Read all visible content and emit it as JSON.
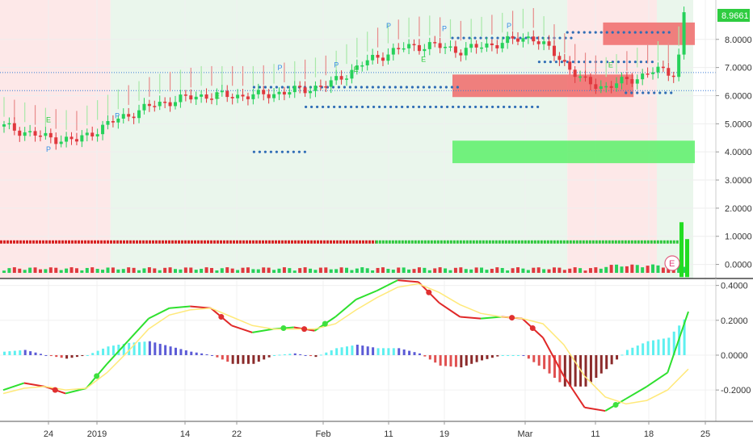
{
  "price_axis": {
    "ticks": [
      "8.0000",
      "7.0000",
      "6.0000",
      "5.0000",
      "4.0000",
      "3.0000",
      "2.0000",
      "1.0000",
      "0.0000"
    ],
    "tick_values": [
      8,
      7,
      6,
      5,
      4,
      3,
      2,
      1,
      0
    ],
    "last_price_label": "8.9661",
    "last_price": 8.9661
  },
  "osc_axis": {
    "ticks": [
      "0.4000",
      "0.2000",
      "0.0000",
      "-0.2000"
    ],
    "tick_values": [
      0.4,
      0.2,
      0,
      -0.2
    ]
  },
  "time_axis": {
    "labels": [
      "24",
      "2019",
      "14",
      "22",
      "Feb",
      "11",
      "19",
      "Mar",
      "11",
      "18",
      "25"
    ]
  },
  "markers": {
    "pivot": "P",
    "earnings": "E",
    "earnings_badge": "E"
  },
  "colors": {
    "up": "#26d15a",
    "down": "#e0383e",
    "bg_red": "#fde8e8",
    "bg_green": "#eaf6ec",
    "macd": "#2ee02e",
    "signal": "#ffe97a",
    "hist_pos_strong": "#5ef0f0",
    "hist_pos_weak": "#5b5bd6",
    "hist_neg_strong": "#e05050",
    "hist_neg_weak": "#8b2b2b",
    "dots": "#2f6db5",
    "box_green": "#5cf06a",
    "box_red": "#f06a6a"
  },
  "chart_data": [
    {
      "type": "candlestick",
      "title": "",
      "y_range": [
        -0.5,
        9.4
      ],
      "x_start": "2018-12-18",
      "x_ticks": [
        "2018-12-24",
        "2019-01-01",
        "2019-01-14",
        "2019-01-22",
        "2019-02-01",
        "2019-02-11",
        "2019-02-19",
        "2019-03-01",
        "2019-03-11",
        "2019-03-18",
        "2019-03-25"
      ],
      "closes": [
        {
          "date": "2018-12-18",
          "close": 4.9
        },
        {
          "date": "2018-12-24",
          "close": 4.5
        },
        {
          "date": "2018-12-28",
          "close": 4.4
        },
        {
          "date": "2019-01-03",
          "close": 5.2
        },
        {
          "date": "2019-01-08",
          "close": 5.7
        },
        {
          "date": "2019-01-14",
          "close": 6.0
        },
        {
          "date": "2019-01-22",
          "close": 6.0
        },
        {
          "date": "2019-01-28",
          "close": 6.2
        },
        {
          "date": "2019-02-01",
          "close": 6.4
        },
        {
          "date": "2019-02-06",
          "close": 7.2
        },
        {
          "date": "2019-02-11",
          "close": 7.7
        },
        {
          "date": "2019-02-15",
          "close": 7.8
        },
        {
          "date": "2019-02-19",
          "close": 7.6
        },
        {
          "date": "2019-02-25",
          "close": 7.9
        },
        {
          "date": "2019-03-01",
          "close": 8.1
        },
        {
          "date": "2019-03-05",
          "close": 7.3
        },
        {
          "date": "2019-03-08",
          "close": 6.5
        },
        {
          "date": "2019-03-11",
          "close": 6.3
        },
        {
          "date": "2019-03-15",
          "close": 6.6
        },
        {
          "date": "2019-03-18",
          "close": 6.9
        },
        {
          "date": "2019-03-21",
          "close": 6.8
        },
        {
          "date": "2019-03-22",
          "close": 8.9661
        }
      ],
      "background_zones": [
        {
          "from": "2018-12-18",
          "to": "2019-01-03",
          "trend": "bearish"
        },
        {
          "from": "2019-01-03",
          "to": "2019-03-07",
          "trend": "bullish"
        },
        {
          "from": "2019-03-07",
          "to": "2019-03-19",
          "trend": "bearish"
        },
        {
          "from": "2019-03-19",
          "to": "2019-03-22",
          "trend": "bullish"
        }
      ],
      "zones": [
        {
          "color": "red",
          "from": "2019-03-12",
          "to": "2019-03-22",
          "y_low": 7.8,
          "y_high": 8.6
        },
        {
          "color": "red",
          "from": "2019-02-20",
          "to": "2019-03-16",
          "y_low": 5.95,
          "y_high": 6.75
        },
        {
          "color": "green",
          "from": "2019-02-20",
          "to": "2019-03-22",
          "y_low": 3.6,
          "y_high": 4.4
        }
      ],
      "dotted_levels": [
        {
          "y": 4.0,
          "from": "2019-01-24",
          "to": "2019-01-30"
        },
        {
          "y": 5.6,
          "from": "2019-01-30",
          "to": "2019-03-03"
        },
        {
          "y": 6.3,
          "from": "2019-01-24",
          "to": "2019-02-21"
        },
        {
          "y": 7.2,
          "from": "2019-03-03",
          "to": "2019-03-19"
        },
        {
          "y": 8.05,
          "from": "2019-02-20",
          "to": "2019-03-08"
        },
        {
          "y": 8.25,
          "from": "2019-03-07",
          "to": "2019-03-21"
        },
        {
          "y": 6.1,
          "from": "2019-03-15",
          "to": "2019-03-21"
        }
      ],
      "horizontal_lines": [
        {
          "y": 6.82
        },
        {
          "y": 6.18
        }
      ],
      "band_line": [
        {
          "from": "2018-12-18",
          "to": "2019-02-09",
          "y": 0.8,
          "color": "red"
        },
        {
          "from": "2019-02-09",
          "to": "2019-03-22",
          "y": 0.8,
          "color": "green"
        }
      ],
      "volume_spikes": [
        1.95,
        1.35
      ]
    },
    {
      "type": "line",
      "title": "",
      "y_range": [
        -0.38,
        0.44
      ],
      "series": [
        {
          "kind": "macd",
          "values": [
            -0.2,
            -0.16,
            -0.18,
            -0.22,
            -0.19,
            -0.05,
            0.08,
            0.21,
            0.27,
            0.28,
            0.27,
            0.17,
            0.13,
            0.15,
            0.16,
            0.14,
            0.22,
            0.32,
            0.37,
            0.43,
            0.42,
            0.3,
            0.22,
            0.21,
            0.22,
            0.21,
            0.1,
            -0.12,
            -0.3,
            -0.32,
            -0.25,
            -0.18,
            -0.1,
            0.25
          ]
        },
        {
          "kind": "signal",
          "values": [
            -0.22,
            -0.19,
            -0.18,
            -0.2,
            -0.19,
            -0.1,
            0.02,
            0.15,
            0.23,
            0.26,
            0.27,
            0.22,
            0.17,
            0.15,
            0.15,
            0.15,
            0.18,
            0.26,
            0.33,
            0.39,
            0.41,
            0.36,
            0.29,
            0.24,
            0.22,
            0.21,
            0.18,
            0.06,
            -0.12,
            -0.24,
            -0.28,
            -0.26,
            -0.2,
            -0.08
          ]
        }
      ],
      "histogram": [
        0.02,
        0.03,
        0.0,
        -0.02,
        0.0,
        0.05,
        0.07,
        0.08,
        0.05,
        0.02,
        0.0,
        -0.05,
        -0.05,
        0.0,
        0.01,
        -0.01,
        0.04,
        0.06,
        0.04,
        0.04,
        0.01,
        -0.06,
        -0.07,
        -0.03,
        0.0,
        0.0,
        -0.08,
        -0.18,
        -0.18,
        -0.08,
        0.03,
        0.08,
        0.1,
        0.24
      ]
    }
  ]
}
